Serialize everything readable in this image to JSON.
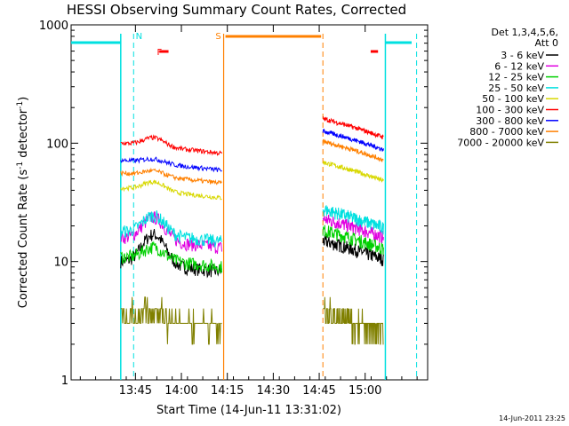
{
  "chart_data": {
    "type": "line",
    "title": "HESSI Observing Summary Count Rates, Corrected",
    "xlabel": "Start Time (14-Jun-11 13:31:02)",
    "ylabel_main": "Corrected Count Rate (s",
    "ylabel_sup1": "-1",
    "ylabel_mid": " detector",
    "ylabel_sup2": "-1",
    "ylabel_end": ")",
    "yscale": "log",
    "ylim": [
      1,
      1000
    ],
    "xlim_minutes": [
      13.4,
      15.34
    ],
    "xticks": [
      {
        "label": "13:45",
        "t": 13.75
      },
      {
        "label": "14:00",
        "t": 14.0
      },
      {
        "label": "14:15",
        "t": 14.25
      },
      {
        "label": "14:30",
        "t": 14.5
      },
      {
        "label": "14:45",
        "t": 14.75
      },
      {
        "label": "15:00",
        "t": 15.0
      }
    ],
    "yticks": [
      {
        "label": "1",
        "v": 1
      },
      {
        "label": "10",
        "v": 10
      },
      {
        "label": "100",
        "v": 100
      },
      {
        "label": "1000",
        "v": 1000
      }
    ],
    "legend_title_1": "Det 1,3,4,5,6,",
    "legend_title_2": "Att 0",
    "legend_position": "top-right",
    "series": [
      {
        "name": "3 - 6 keV",
        "color": "#000000",
        "seg1": 10,
        "seg2": 13,
        "peak": 18
      },
      {
        "name": "6 - 12 keV",
        "color": "#e000e0",
        "seg1": 16,
        "seg2": 20,
        "peak": 25
      },
      {
        "name": "12 - 25 keV",
        "color": "#00d000",
        "seg1": 11,
        "seg2": 16,
        "peak": 14
      },
      {
        "name": "25 - 50 keV",
        "color": "#00e0e0",
        "seg1": 18,
        "seg2": 24,
        "peak": 26
      },
      {
        "name": "50 - 100 keV",
        "color": "#d8d800",
        "seg1": 42,
        "seg2": 60,
        "peak": 50
      },
      {
        "name": "100 - 300 keV",
        "color": "#ff0000",
        "seg1": 100,
        "seg2": 140,
        "peak": 118
      },
      {
        "name": "300 - 800 keV",
        "color": "#0000ff",
        "seg1": 72,
        "seg2": 110,
        "peak": 78
      },
      {
        "name": "800 - 7000 keV",
        "color": "#ff8000",
        "seg1": 56,
        "seg2": 90,
        "peak": 62
      },
      {
        "name": "7000 - 20000 keV",
        "color": "#808000",
        "seg1": 3.5,
        "seg2": 3.2,
        "peak": 4
      }
    ],
    "intervals": {
      "obs1_start": 13.67,
      "obs1_end": 14.22,
      "obs2_start": 14.77,
      "obs2_end": 15.1
    },
    "flags": [
      {
        "label": "N",
        "color": "#00e0e0",
        "t": 13.75
      },
      {
        "label": "F",
        "color": "#ff0000",
        "t": 13.91
      },
      {
        "label": "S",
        "color": "#ff8000",
        "t": 14.23
      }
    ],
    "timestamp": "14-Jun-2011 23:25"
  }
}
